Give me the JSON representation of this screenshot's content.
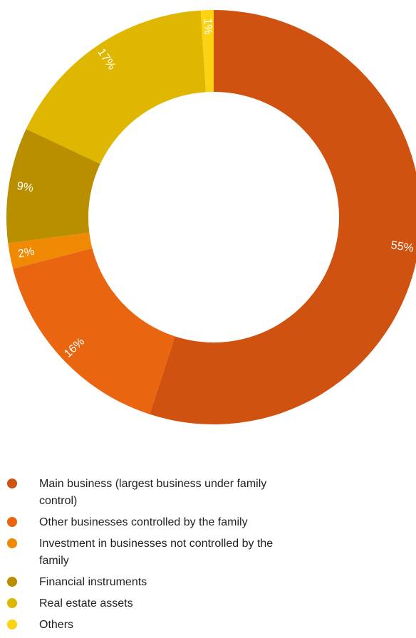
{
  "chart_data": {
    "type": "pie",
    "donut": true,
    "legend_position": "bottom",
    "slices": [
      {
        "label": "Main business (largest business under family control)",
        "value": 55,
        "text": "55%",
        "color": "#cf5210"
      },
      {
        "label": "Other businesses controlled by the family",
        "value": 16,
        "text": "16%",
        "color": "#ea6510"
      },
      {
        "label": "Investment in businesses not controlled by the family",
        "value": 2,
        "text": "2%",
        "color": "#f08a05"
      },
      {
        "label": "Financial instruments",
        "value": 9,
        "text": "9%",
        "color": "#b98f00"
      },
      {
        "label": "Real estate assets",
        "value": 17,
        "text": "17%",
        "color": "#dfb600"
      },
      {
        "label": "Others",
        "value": 1,
        "text": "1%",
        "color": "#fcd313"
      }
    ]
  }
}
